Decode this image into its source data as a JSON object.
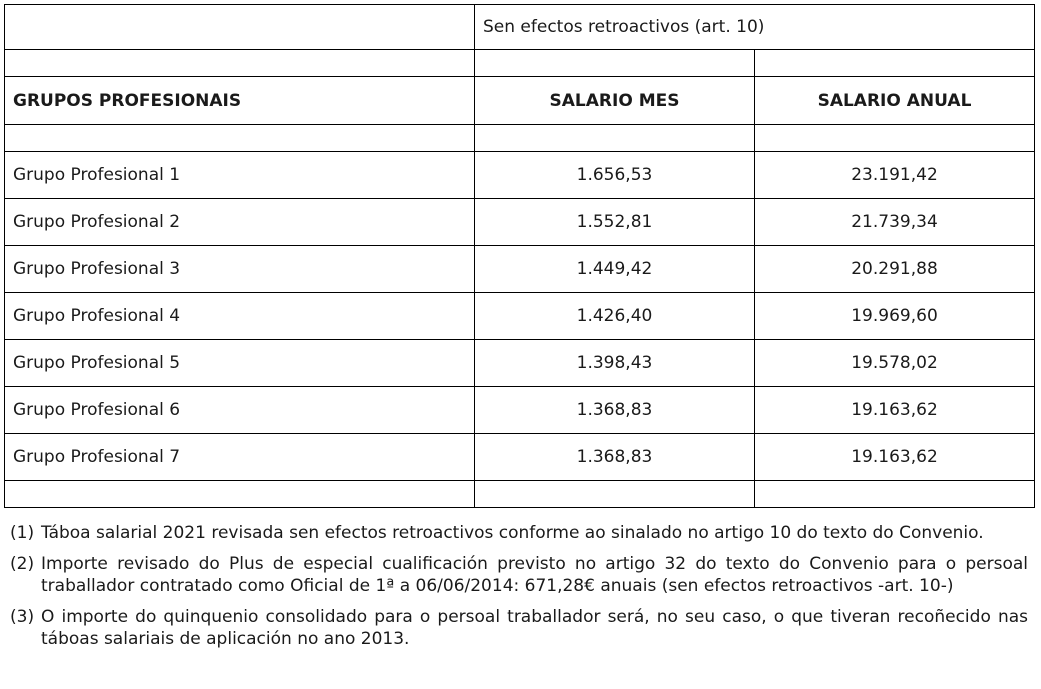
{
  "table": {
    "top_label": "Sen efectos retroactivos (art. 10)",
    "headers": {
      "group": "GRUPOS PROFESIONAIS",
      "monthly": "SALARIO MES",
      "annual": "SALARIO ANUAL"
    },
    "rows": [
      {
        "group": "Grupo Profesional 1",
        "monthly": "1.656,53",
        "annual": "23.191,42"
      },
      {
        "group": "Grupo Profesional 2",
        "monthly": "1.552,81",
        "annual": "21.739,34"
      },
      {
        "group": "Grupo Profesional 3",
        "monthly": "1.449,42",
        "annual": "20.291,88"
      },
      {
        "group": "Grupo Profesional 4",
        "monthly": "1.426,40",
        "annual": "19.969,60"
      },
      {
        "group": "Grupo Profesional 5",
        "monthly": "1.398,43",
        "annual": "19.578,02"
      },
      {
        "group": "Grupo Profesional 6",
        "monthly": "1.368,83",
        "annual": "19.163,62"
      },
      {
        "group": "Grupo Profesional 7",
        "monthly": "1.368,83",
        "annual": "19.163,62"
      }
    ]
  },
  "notes": [
    {
      "num": "(1)",
      "text": "Táboa salarial 2021 revisada sen efectos retroactivos conforme ao sinalado no artigo 10 do texto do Convenio."
    },
    {
      "num": "(2)",
      "text": "Importe revisado do Plus de especial cualificación previsto no artigo 32 do texto do Convenio para o persoal traballador contratado como Oficial de 1ª a 06/06/2014: 671,28€ anuais (sen efectos retroactivos -art. 10-)"
    },
    {
      "num": "(3)",
      "text": "O importe do quinquenio consolidado para o persoal traballador será, no seu caso, o que tiveran recoñecido nas táboas salariais de aplicación no ano 2013."
    }
  ]
}
